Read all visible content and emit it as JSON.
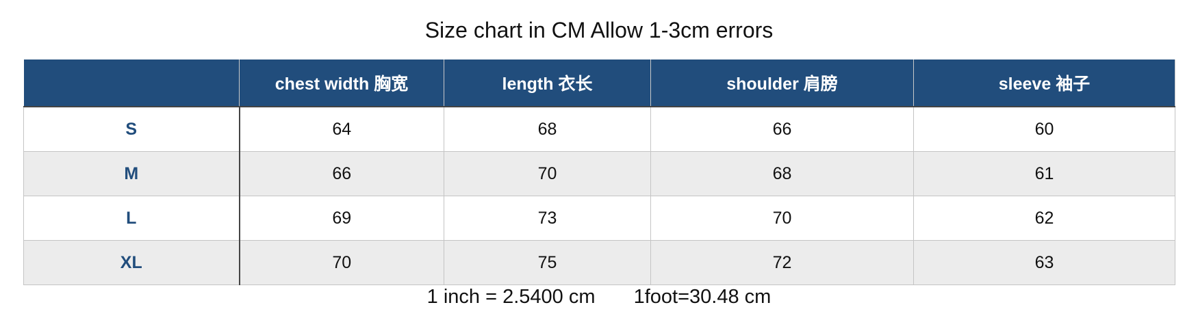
{
  "title": "Size chart in CM Allow 1-3cm errors",
  "header_color": "#214d7c",
  "table": {
    "columns": [
      "",
      "chest width 胸宽",
      "length 衣长",
      "shoulder 肩膀",
      "sleeve 袖子"
    ],
    "rows": [
      {
        "size": "S",
        "values": [
          "64",
          "68",
          "66",
          "60"
        ]
      },
      {
        "size": "M",
        "values": [
          "66",
          "70",
          "68",
          "61"
        ]
      },
      {
        "size": "L",
        "values": [
          "69",
          "73",
          "70",
          "62"
        ]
      },
      {
        "size": "XL",
        "values": [
          "70",
          "75",
          "72",
          "63"
        ]
      }
    ]
  },
  "footer": {
    "inch": "1 inch = 2.5400 cm",
    "foot": "1foot=30.48 cm"
  }
}
